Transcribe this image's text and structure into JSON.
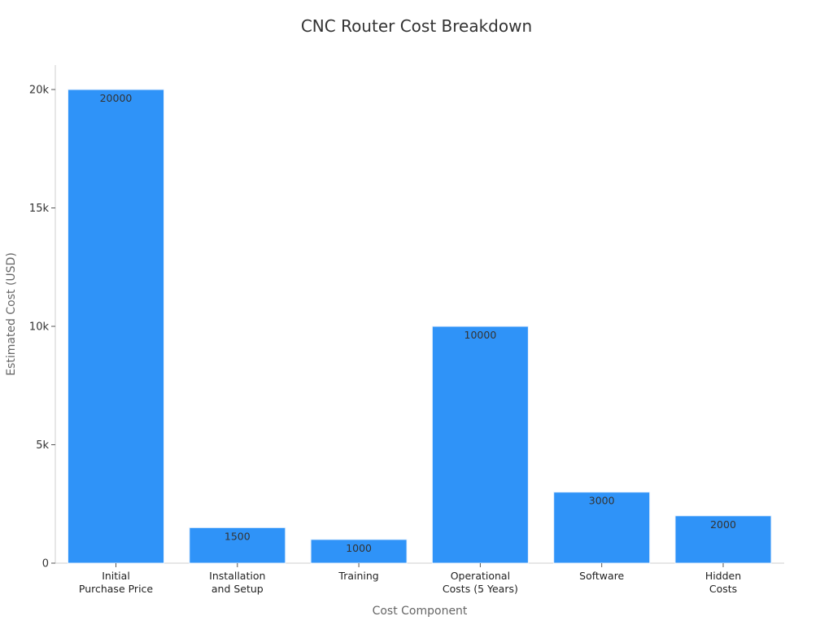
{
  "chart_data": {
    "type": "bar",
    "title": "CNC Router Cost Breakdown",
    "xlabel": "Cost Component",
    "ylabel": "Estimated Cost (USD)",
    "categories": [
      [
        "Initial",
        "Purchase Price"
      ],
      [
        "Installation",
        "and Setup"
      ],
      [
        "Training"
      ],
      [
        "Operational",
        "Costs (5 Years)"
      ],
      [
        "Software"
      ],
      [
        "Hidden",
        "Costs"
      ]
    ],
    "values": [
      20000,
      1500,
      1000,
      10000,
      3000,
      2000
    ],
    "data_labels": [
      "20000",
      "1500",
      "1000",
      "10000",
      "3000",
      "2000"
    ],
    "yticks": [
      0,
      5000,
      10000,
      15000,
      20000
    ],
    "ytick_labels": [
      "0",
      "5k",
      "10k",
      "15k",
      "20k"
    ],
    "ylim": [
      0,
      21000
    ],
    "grid": false,
    "legend": "none",
    "bar_color": "#2f93f8"
  }
}
